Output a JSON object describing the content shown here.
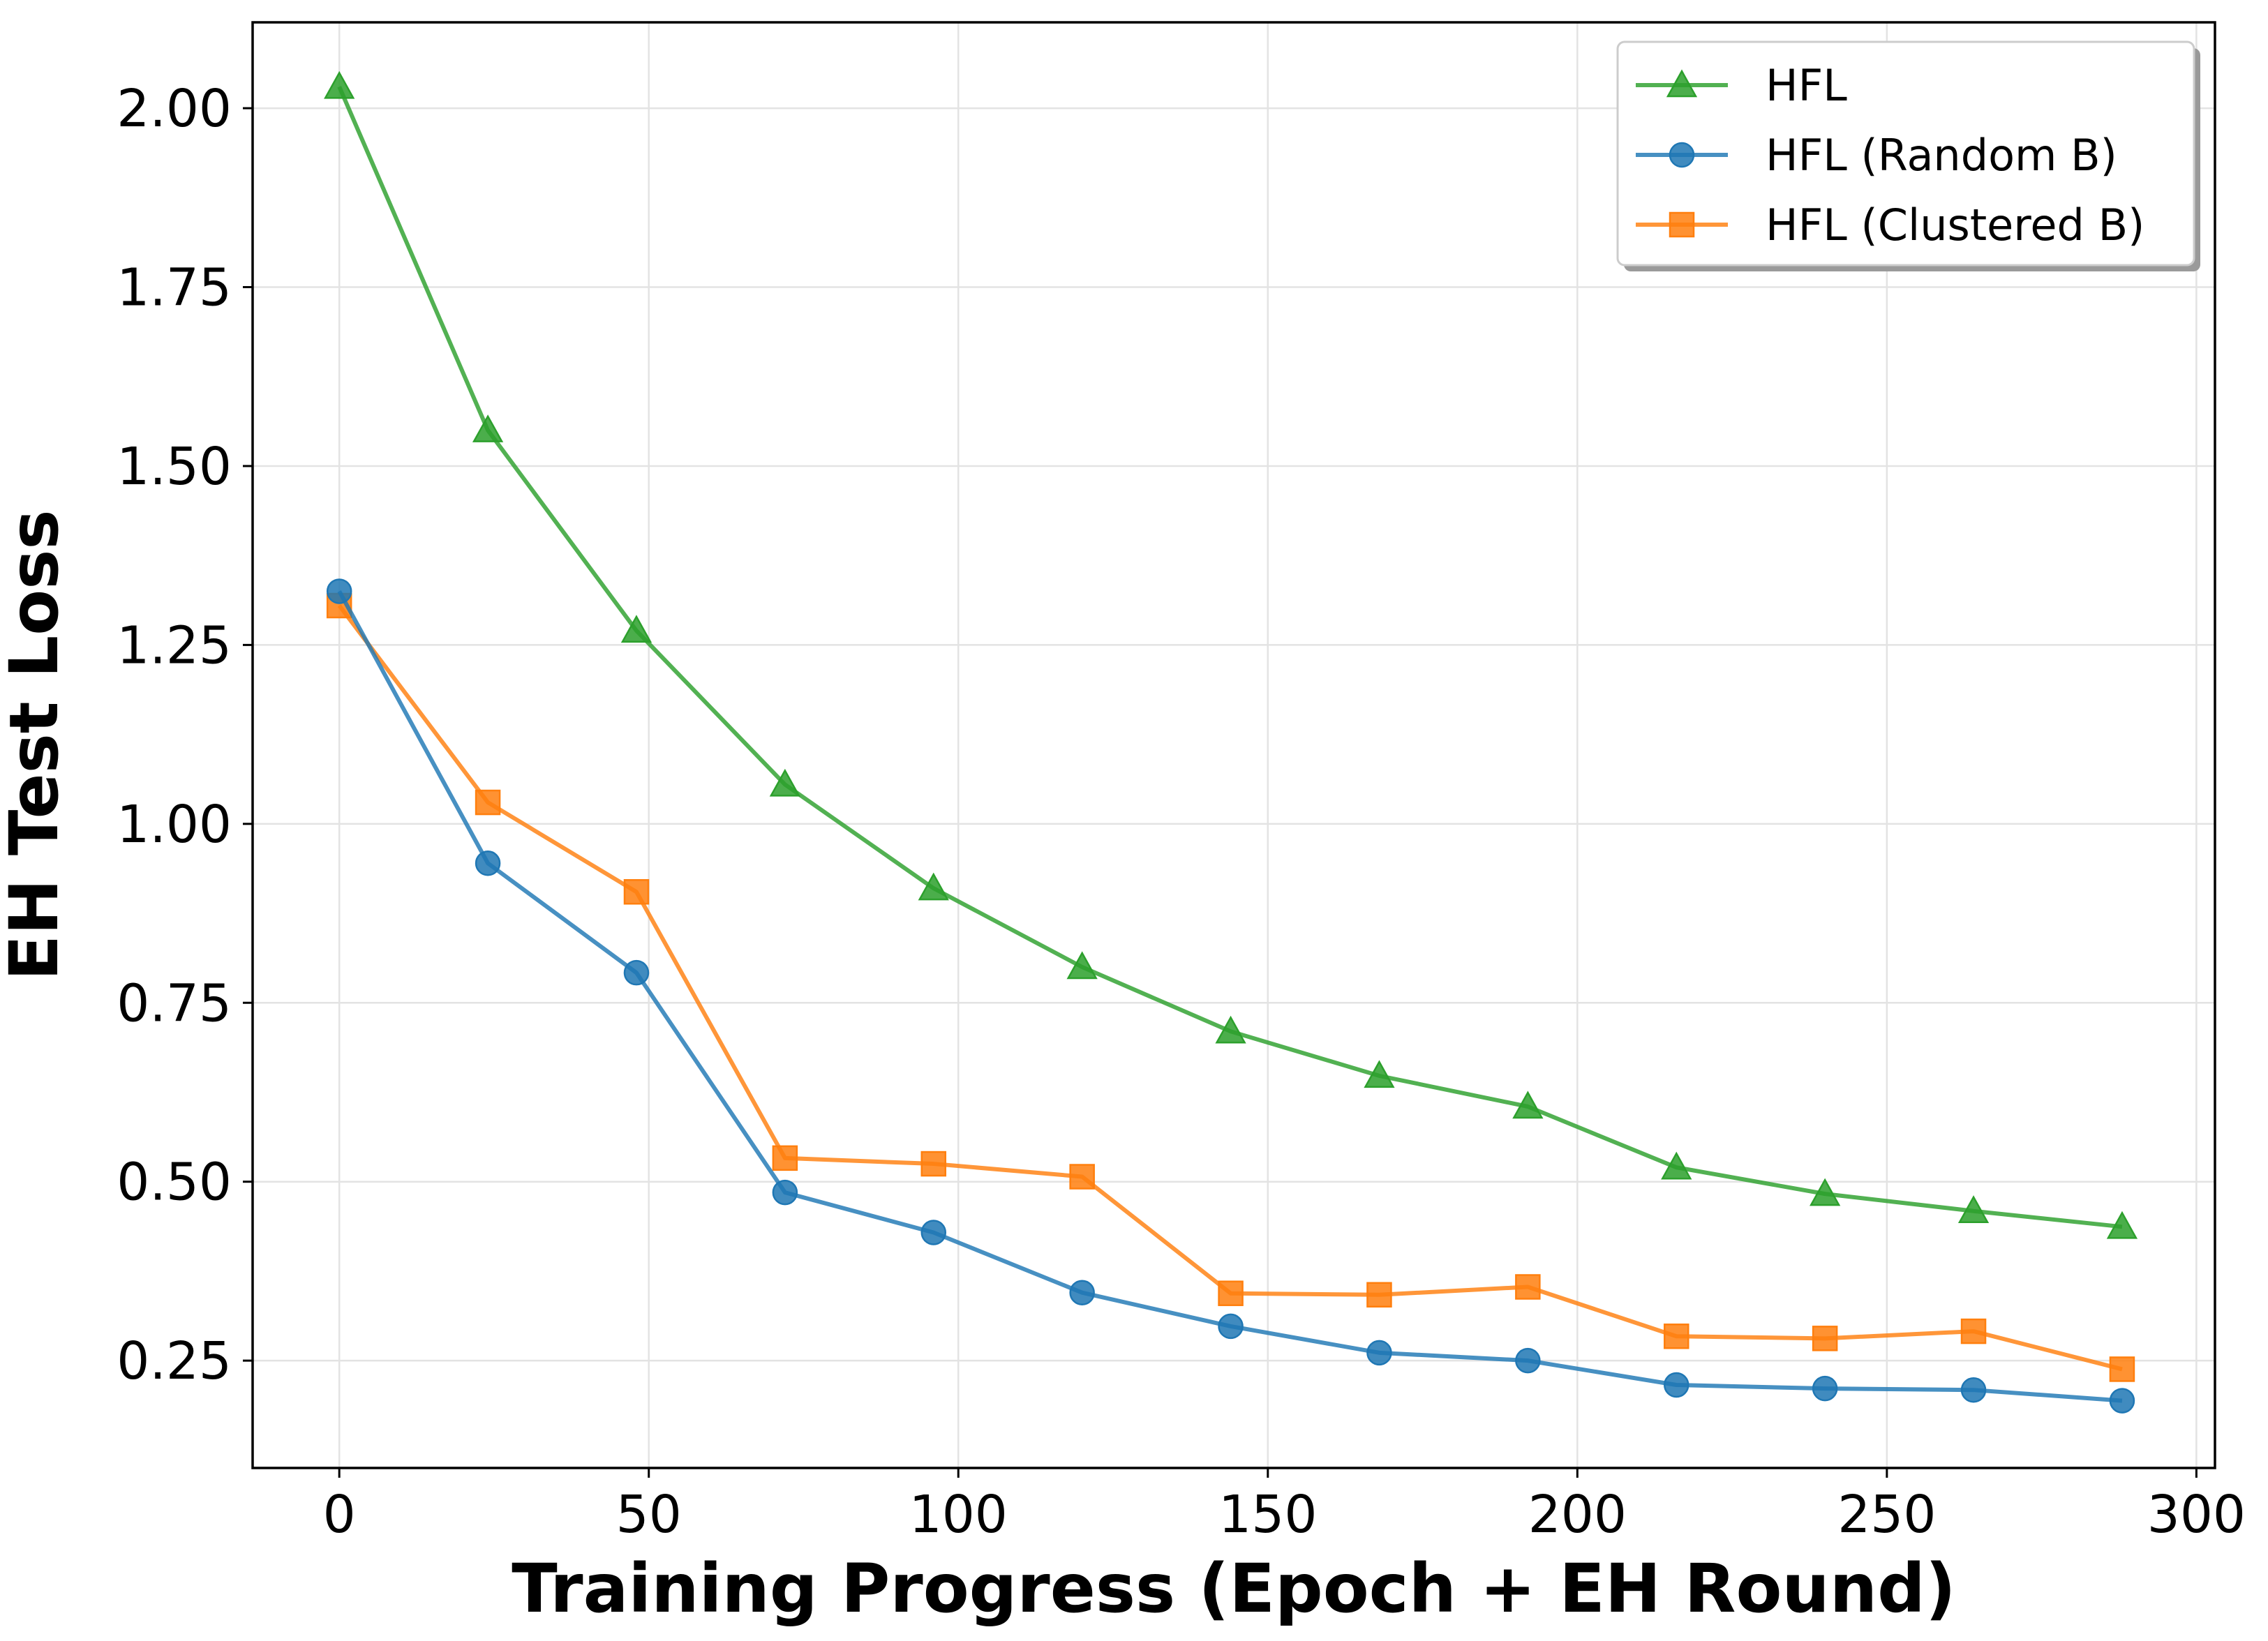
{
  "chart_data": {
    "type": "line",
    "xlabel": "Training Progress (Epoch + EH Round)",
    "ylabel": "EH Test Loss",
    "xlim": [
      -14,
      303
    ],
    "ylim": [
      0.1,
      2.12
    ],
    "xticks": [
      0,
      50,
      100,
      150,
      200,
      250,
      300
    ],
    "xtick_labels": [
      "0",
      "50",
      "100",
      "150",
      "200",
      "250",
      "300"
    ],
    "yticks": [
      0.25,
      0.5,
      0.75,
      1.0,
      1.25,
      1.5,
      1.75,
      2.0
    ],
    "ytick_labels": [
      "0.25",
      "0.50",
      "0.75",
      "1.00",
      "1.25",
      "1.50",
      "1.75",
      "2.00"
    ],
    "grid": true,
    "legend_position": "top-right",
    "x": [
      0,
      24,
      48,
      72,
      96,
      120,
      144,
      168,
      192,
      216,
      240,
      264,
      288
    ],
    "series": [
      {
        "name": "HFL",
        "color": "#2ca02c",
        "marker": "triangle",
        "values": [
          2.03,
          1.55,
          1.27,
          1.055,
          0.91,
          0.8,
          0.71,
          0.648,
          0.605,
          0.52,
          0.483,
          0.459,
          0.437
        ]
      },
      {
        "name": "HFL (Random B)",
        "color": "#1f77b4",
        "marker": "circle",
        "values": [
          1.325,
          0.945,
          0.792,
          0.485,
          0.429,
          0.345,
          0.298,
          0.261,
          0.25,
          0.216,
          0.211,
          0.209,
          0.194
        ]
      },
      {
        "name": "HFL (Clustered B)",
        "color": "#ff7f0e",
        "marker": "square",
        "values": [
          1.305,
          1.03,
          0.905,
          0.533,
          0.525,
          0.507,
          0.344,
          0.342,
          0.353,
          0.284,
          0.281,
          0.291,
          0.238
        ]
      }
    ]
  }
}
